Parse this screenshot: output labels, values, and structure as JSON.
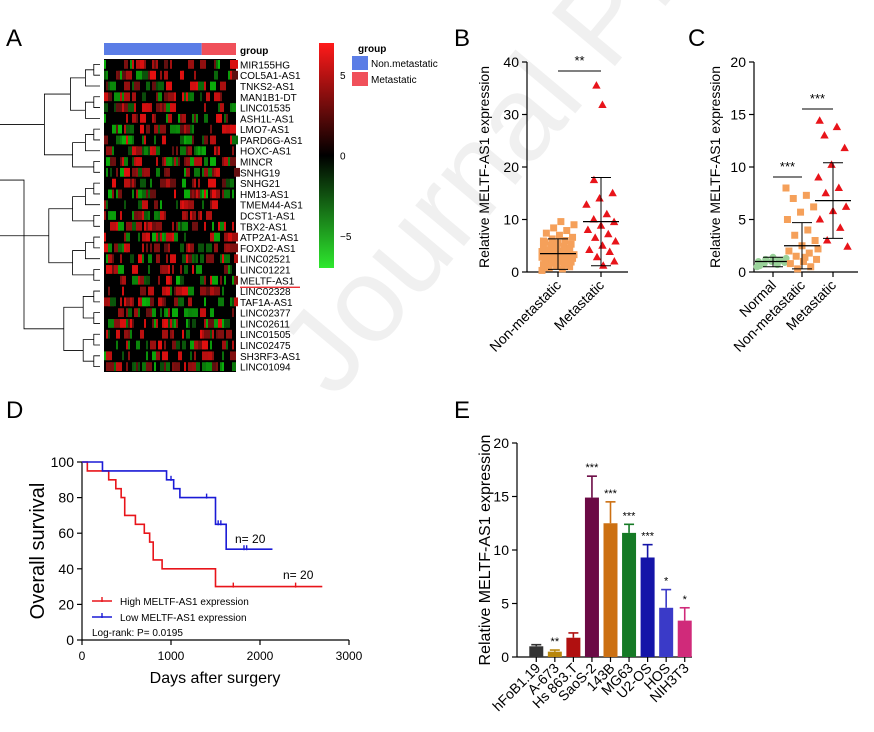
{
  "watermark": "Journal Pre-proof",
  "panel_letters": [
    "A",
    "B",
    "C",
    "D",
    "E"
  ],
  "chart_data": [
    {
      "id": "A",
      "type": "heatmap",
      "top_annotation_label": "group",
      "legend": {
        "title": "group",
        "entries": [
          {
            "name": "Non.metastatic",
            "color": "#5b7de6"
          },
          {
            "name": "Metastatic",
            "color": "#f0505a"
          }
        ]
      },
      "colorbar": {
        "ticks": [
          5,
          0,
          -5
        ],
        "low": "#2ee82e",
        "mid": "#000000",
        "high": "#ff1a1a"
      },
      "group_fraction_nonmetastatic": 0.74,
      "genes": [
        "MIR155HG",
        "COL5A1-AS1",
        "TNKS2-AS1",
        "MAN1B1-DT",
        "LINC01535",
        "ASH1L-AS1",
        "LMO7-AS1",
        "PARD6G-AS1",
        "HOXC-AS1",
        "MINCR",
        "SNHG19",
        "SNHG21",
        "HM13-AS1",
        "TMEM44-AS1",
        "DCST1-AS1",
        "TBX2-AS1",
        "ATP2A1-AS1",
        "FOXD2-AS1",
        "LINC02521",
        "LINC01221",
        "MELTF-AS1",
        "LINC02328",
        "TAF1A-AS1",
        "LINC02377",
        "LINC02611",
        "LINC01505",
        "LINC02475",
        "SH3RF3-AS1",
        "LINC01094"
      ],
      "highlight_gene": "MELTF-AS1"
    },
    {
      "id": "B",
      "type": "scatter",
      "ylabel": "Relative MELTF-AS1 expression",
      "ylim": [
        0,
        40
      ],
      "yticks": [
        0,
        10,
        20,
        30,
        40
      ],
      "categories": [
        "Non-metastatic",
        "Metastatic"
      ],
      "series": [
        {
          "name": "Non-metastatic",
          "color": "#f5a05a",
          "marker": "square",
          "mean": 3.5,
          "sd_low": 0.5,
          "sd_high": 6.3,
          "values": [
            0.3,
            0.6,
            0.8,
            1.0,
            1.2,
            1.4,
            1.5,
            1.7,
            1.9,
            2.0,
            2.1,
            2.3,
            2.4,
            2.6,
            2.7,
            2.9,
            3.0,
            3.1,
            3.3,
            3.4,
            3.5,
            3.6,
            3.8,
            3.9,
            4.0,
            4.2,
            4.4,
            4.5,
            4.7,
            4.9,
            5.1,
            5.3,
            5.5,
            5.7,
            6.0,
            6.3,
            6.6,
            7.0,
            7.4,
            7.9,
            8.4,
            9.0,
            9.6,
            0.9,
            1.6,
            2.2,
            2.8,
            3.2,
            4.1,
            4.6,
            5.0,
            5.9
          ]
        },
        {
          "name": "Metastatic",
          "color": "#e8141a",
          "marker": "triangle",
          "mean": 9.6,
          "sd_low": 1.2,
          "sd_high": 18.0,
          "values": [
            35.5,
            31.8,
            17.5,
            15.0,
            14.0,
            12.8,
            11.0,
            10.0,
            9.5,
            8.8,
            8.0,
            7.2,
            6.5,
            5.8,
            5.0,
            4.2,
            3.8,
            2.8,
            2.0,
            1.2
          ]
        }
      ],
      "annotations": [
        {
          "text": "**",
          "between": [
            0,
            1
          ]
        }
      ]
    },
    {
      "id": "C",
      "type": "scatter",
      "ylabel": "Relative MELTF-AS1 expression",
      "ylim": [
        0,
        20
      ],
      "yticks": [
        0,
        5,
        10,
        15,
        20
      ],
      "categories": [
        "Normal",
        "Non-metastatic",
        "Metastatic"
      ],
      "series": [
        {
          "name": "Normal",
          "color": "#9ad29a",
          "marker": "circle",
          "mean": 1.0,
          "sd_low": 0.5,
          "sd_high": 1.4,
          "values": [
            0.5,
            0.7,
            0.8,
            0.9,
            1.0,
            1.0,
            1.1,
            1.2,
            1.3,
            1.4,
            0.6,
            1.1
          ]
        },
        {
          "name": "Non-metastatic",
          "color": "#f5a05a",
          "marker": "square",
          "mean": 2.5,
          "sd_low": 0.3,
          "sd_high": 4.7,
          "values": [
            8.0,
            7.3,
            7.0,
            6.2,
            5.7,
            5.0,
            4.0,
            3.5,
            3.0,
            2.5,
            2.0,
            1.8,
            1.5,
            1.2,
            1.0,
            0.8,
            0.5,
            0.3,
            2.2,
            1.4
          ]
        },
        {
          "name": "Metastatic",
          "color": "#e8141a",
          "marker": "triangle",
          "mean": 6.8,
          "sd_low": 3.2,
          "sd_high": 10.4,
          "values": [
            14.4,
            13.8,
            13.0,
            11.8,
            10.2,
            9.0,
            8.0,
            7.5,
            6.2,
            5.8,
            5.0,
            4.2,
            3.0,
            2.4
          ]
        }
      ],
      "annotations": [
        {
          "text": "***",
          "between": [
            0,
            1
          ]
        },
        {
          "text": "***",
          "between": [
            1,
            2
          ]
        }
      ]
    },
    {
      "id": "D",
      "type": "line",
      "ylabel": "Overall survival",
      "xlabel": "Days after surgery",
      "xlim": [
        0,
        3000
      ],
      "ylim": [
        0,
        100
      ],
      "xticks": [
        0,
        1000,
        2000,
        3000
      ],
      "yticks": [
        0,
        20,
        40,
        60,
        80,
        100
      ],
      "series": [
        {
          "name": "High MELTF-AS1 expression",
          "color": "#e8141a",
          "n_label": "n= 20",
          "x": [
            0,
            60,
            60,
            300,
            300,
            380,
            380,
            440,
            440,
            480,
            480,
            600,
            600,
            700,
            700,
            760,
            760,
            800,
            800,
            900,
            900,
            1500,
            1500,
            2700
          ],
          "y": [
            100,
            100,
            95,
            95,
            90,
            90,
            85,
            85,
            80,
            80,
            70,
            70,
            65,
            65,
            60,
            60,
            55,
            55,
            45,
            45,
            40,
            40,
            30,
            30
          ],
          "censor_x": [
            1700,
            2400
          ]
        },
        {
          "name": "Low MELTF-AS1 expression",
          "color": "#1a1ad6",
          "n_label": "n= 20",
          "x": [
            0,
            230,
            230,
            950,
            950,
            1030,
            1030,
            1100,
            1100,
            1500,
            1500,
            1620,
            1620,
            2140
          ],
          "y": [
            100,
            100,
            95,
            95,
            90,
            90,
            85,
            85,
            80,
            80,
            65,
            65,
            51,
            51
          ],
          "censor_x": [
            1000,
            1400,
            1530,
            1560,
            1820,
            1850
          ]
        }
      ],
      "logrank": "Log-rank: P= 0.0195"
    },
    {
      "id": "E",
      "type": "bar",
      "ylabel": "Relative MELTF-AS1 expression",
      "ylim": [
        0,
        20
      ],
      "yticks": [
        0,
        5,
        10,
        15,
        20
      ],
      "categories": [
        "hFoB1.19",
        "A-673",
        "Hs 863.T",
        "SaoS-2",
        "143B",
        "MG63",
        "U2-OS",
        "HOS",
        "NIH3T3"
      ],
      "values": [
        1.0,
        0.5,
        1.8,
        14.9,
        12.5,
        11.6,
        9.3,
        4.6,
        3.4
      ],
      "errors": [
        0.15,
        0.15,
        0.45,
        2.0,
        2.0,
        0.8,
        1.2,
        1.7,
        1.2
      ],
      "colors": [
        "#333333",
        "#b8860b",
        "#b01010",
        "#6b0a45",
        "#cc7012",
        "#157a25",
        "#1414a8",
        "#3a3ac8",
        "#d02a7a"
      ],
      "significance": [
        "",
        "**",
        "",
        "***",
        "***",
        "***",
        "***",
        "*",
        "*"
      ]
    }
  ]
}
